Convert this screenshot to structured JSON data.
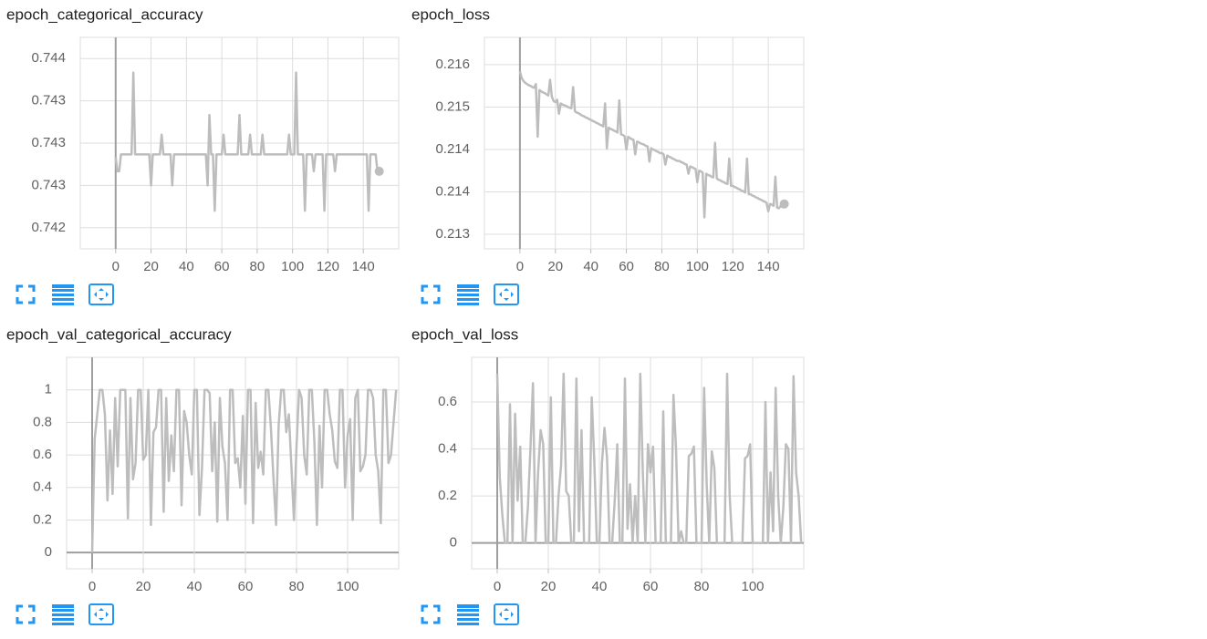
{
  "chart_data": [
    {
      "type": "line",
      "title": "epoch_categorical_accuracy",
      "color": "#bdbdbd",
      "grid": true,
      "end_marker": true,
      "xlim": [
        -20,
        160
      ],
      "xticks": [
        0,
        20,
        40,
        60,
        80,
        100,
        120,
        140
      ],
      "ylim": [
        0.74225,
        0.74375
      ],
      "yticks": [
        {
          "value": 0.7436,
          "label": "0.744"
        },
        {
          "value": 0.7433,
          "label": "0.743"
        },
        {
          "value": 0.743,
          "label": "0.743"
        },
        {
          "value": 0.7427,
          "label": "0.743"
        },
        {
          "value": 0.7424,
          "label": "0.742"
        }
      ],
      "x": [
        0,
        1,
        2,
        3,
        4,
        5,
        6,
        7,
        8,
        9,
        10,
        11,
        12,
        13,
        14,
        15,
        16,
        17,
        18,
        19,
        20,
        21,
        22,
        23,
        24,
        25,
        26,
        27,
        28,
        29,
        30,
        31,
        32,
        33,
        34,
        35,
        36,
        37,
        38,
        39,
        40,
        41,
        42,
        43,
        44,
        45,
        46,
        47,
        48,
        49,
        50,
        51,
        52,
        53,
        54,
        55,
        56,
        57,
        58,
        59,
        60,
        61,
        62,
        63,
        64,
        65,
        66,
        67,
        68,
        69,
        70,
        71,
        72,
        73,
        74,
        75,
        76,
        77,
        78,
        79,
        80,
        81,
        82,
        83,
        84,
        85,
        86,
        87,
        88,
        89,
        90,
        91,
        92,
        93,
        94,
        95,
        96,
        97,
        98,
        99,
        100,
        101,
        102,
        103,
        104,
        105,
        106,
        107,
        108,
        109,
        110,
        111,
        112,
        113,
        114,
        115,
        116,
        117,
        118,
        119,
        120,
        121,
        122,
        123,
        124,
        125,
        126,
        127,
        128,
        129,
        130,
        131,
        132,
        133,
        134,
        135,
        136,
        137,
        138,
        139,
        140,
        141,
        142,
        143,
        144,
        145,
        146,
        147,
        148,
        149
      ],
      "values": [
        0.7429,
        0.7428,
        0.7428,
        0.74292,
        0.74292,
        0.74292,
        0.74292,
        0.74292,
        0.74292,
        0.74292,
        0.7435,
        0.74292,
        0.74292,
        0.74292,
        0.74292,
        0.74292,
        0.74292,
        0.74292,
        0.74292,
        0.74292,
        0.7427,
        0.74292,
        0.74292,
        0.74292,
        0.74292,
        0.74292,
        0.74306,
        0.74292,
        0.74292,
        0.74292,
        0.74292,
        0.74292,
        0.7427,
        0.74292,
        0.74292,
        0.74292,
        0.74292,
        0.74292,
        0.74292,
        0.74292,
        0.74292,
        0.74292,
        0.74292,
        0.74292,
        0.74292,
        0.74292,
        0.74292,
        0.74292,
        0.74292,
        0.74292,
        0.74292,
        0.74292,
        0.7427,
        0.7432,
        0.74292,
        0.74292,
        0.74252,
        0.74292,
        0.74292,
        0.74292,
        0.74292,
        0.74306,
        0.74292,
        0.74292,
        0.74292,
        0.74292,
        0.74292,
        0.74292,
        0.74292,
        0.74292,
        0.7432,
        0.74292,
        0.74292,
        0.74292,
        0.74292,
        0.74292,
        0.74306,
        0.74292,
        0.74292,
        0.74292,
        0.74292,
        0.74292,
        0.74292,
        0.74306,
        0.74292,
        0.74292,
        0.74292,
        0.74292,
        0.74292,
        0.74292,
        0.74292,
        0.74292,
        0.74292,
        0.74292,
        0.74292,
        0.74292,
        0.74292,
        0.74292,
        0.74306,
        0.74292,
        0.74292,
        0.74292,
        0.7435,
        0.74292,
        0.74292,
        0.74292,
        0.74292,
        0.74252,
        0.74292,
        0.74292,
        0.74292,
        0.74292,
        0.7428,
        0.74292,
        0.74292,
        0.74292,
        0.74292,
        0.74292,
        0.74252,
        0.74292,
        0.74292,
        0.74292,
        0.74292,
        0.74292,
        0.7428,
        0.74292,
        0.74292,
        0.74292,
        0.74292,
        0.74292,
        0.74292,
        0.74292,
        0.74292,
        0.74292,
        0.74292,
        0.74292,
        0.74292,
        0.74292,
        0.74292,
        0.74292,
        0.74292,
        0.74292,
        0.74292,
        0.74252,
        0.74292,
        0.74292,
        0.74292,
        0.74292,
        0.7428,
        0.7428
      ]
    },
    {
      "type": "line",
      "title": "epoch_loss",
      "color": "#bdbdbd",
      "grid": true,
      "end_marker": true,
      "xlim": [
        -20,
        160
      ],
      "xticks": [
        0,
        20,
        40,
        60,
        80,
        100,
        120,
        140
      ],
      "ylim": [
        0.21276,
        0.21625
      ],
      "yticks": [
        {
          "value": 0.2158,
          "label": "0.216"
        },
        {
          "value": 0.2151,
          "label": "0.215"
        },
        {
          "value": 0.2144,
          "label": "0.214"
        },
        {
          "value": 0.2137,
          "label": "0.214"
        },
        {
          "value": 0.213,
          "label": "0.213"
        }
      ],
      "x": [
        0,
        1,
        2,
        3,
        4,
        5,
        6,
        7,
        8,
        9,
        10,
        11,
        12,
        13,
        14,
        15,
        16,
        17,
        18,
        19,
        20,
        21,
        22,
        23,
        24,
        25,
        26,
        27,
        28,
        29,
        30,
        31,
        32,
        33,
        34,
        35,
        36,
        37,
        38,
        39,
        40,
        41,
        42,
        43,
        44,
        45,
        46,
        47,
        48,
        49,
        50,
        51,
        52,
        53,
        54,
        55,
        56,
        57,
        58,
        59,
        60,
        61,
        62,
        63,
        64,
        65,
        66,
        67,
        68,
        69,
        70,
        71,
        72,
        73,
        74,
        75,
        76,
        77,
        78,
        79,
        80,
        81,
        82,
        83,
        84,
        85,
        86,
        87,
        88,
        89,
        90,
        91,
        92,
        93,
        94,
        95,
        96,
        97,
        98,
        99,
        100,
        101,
        102,
        103,
        104,
        105,
        106,
        107,
        108,
        109,
        110,
        111,
        112,
        113,
        114,
        115,
        116,
        117,
        118,
        119,
        120,
        121,
        122,
        123,
        124,
        125,
        126,
        127,
        128,
        129,
        130,
        131,
        132,
        133,
        134,
        135,
        136,
        137,
        138,
        139,
        140,
        141,
        142,
        143,
        144,
        145,
        146,
        147,
        148,
        149
      ],
      "values": [
        0.21569,
        0.21558,
        0.21553,
        0.2155,
        0.21548,
        0.21546,
        0.21545,
        0.21543,
        0.21542,
        0.21548,
        0.21461,
        0.21538,
        0.21536,
        0.21534,
        0.21533,
        0.21531,
        0.21529,
        0.21555,
        0.21527,
        0.2152,
        0.21518,
        0.21522,
        0.21499,
        0.21516,
        0.21514,
        0.21513,
        0.21512,
        0.2151,
        0.21509,
        0.21508,
        0.21543,
        0.21503,
        0.21501,
        0.215,
        0.21498,
        0.21496,
        0.21495,
        0.21493,
        0.21492,
        0.2149,
        0.21489,
        0.21487,
        0.21486,
        0.21484,
        0.21483,
        0.21481,
        0.2148,
        0.21478,
        0.21516,
        0.21442,
        0.21476,
        0.21474,
        0.21473,
        0.21471,
        0.2147,
        0.21468,
        0.21521,
        0.21465,
        0.21464,
        0.21462,
        0.2144,
        0.21461,
        0.21459,
        0.21457,
        0.21456,
        0.21432,
        0.21453,
        0.21452,
        0.2145,
        0.21449,
        0.21448,
        0.21446,
        0.21445,
        0.2142,
        0.21442,
        0.2144,
        0.21439,
        0.21437,
        0.21436,
        0.21434,
        0.21434,
        0.21432,
        0.21415,
        0.2143,
        0.21428,
        0.21427,
        0.21425,
        0.21424,
        0.21422,
        0.21421,
        0.21421,
        0.21419,
        0.21418,
        0.21416,
        0.21415,
        0.214,
        0.21412,
        0.21411,
        0.21409,
        0.21408,
        0.21386,
        0.21405,
        0.21404,
        0.21402,
        0.21328,
        0.214,
        0.21398,
        0.21397,
        0.21395,
        0.21394,
        0.21451,
        0.21392,
        0.2139,
        0.21389,
        0.21387,
        0.21386,
        0.21384,
        0.21383,
        0.21425,
        0.2138,
        0.2138,
        0.21378,
        0.21377,
        0.21375,
        0.21374,
        0.21372,
        0.21371,
        0.21369,
        0.21425,
        0.21366,
        0.21366,
        0.21364,
        0.21363,
        0.21361,
        0.2136,
        0.21358,
        0.21357,
        0.21355,
        0.21354,
        0.21352,
        0.21338,
        0.2135,
        0.21349,
        0.21347,
        0.21395,
        0.21344,
        0.21343,
        0.21347,
        0.21345,
        0.2135
      ]
    },
    {
      "type": "line",
      "title": "epoch_val_categorical_accuracy",
      "color": "#bdbdbd",
      "grid": true,
      "end_marker": false,
      "xlim": [
        -10,
        120
      ],
      "xticks": [
        0,
        20,
        40,
        60,
        80,
        100
      ],
      "ylim": [
        -0.1,
        1.2
      ],
      "yticks": [
        0,
        0.2,
        0.4,
        0.6,
        0.8,
        1
      ],
      "x": [
        0,
        1,
        2,
        3,
        4,
        5,
        6,
        7,
        8,
        9,
        10,
        11,
        12,
        13,
        14,
        15,
        16,
        17,
        18,
        19,
        20,
        21,
        22,
        23,
        24,
        25,
        26,
        27,
        28,
        29,
        30,
        31,
        32,
        33,
        34,
        35,
        36,
        37,
        38,
        39,
        40,
        41,
        42,
        43,
        44,
        45,
        46,
        47,
        48,
        49,
        50,
        51,
        52,
        53,
        54,
        55,
        56,
        57,
        58,
        59,
        60,
        61,
        62,
        63,
        64,
        65,
        66,
        67,
        68,
        69,
        70,
        71,
        72,
        73,
        74,
        75,
        76,
        77,
        78,
        79,
        80,
        81,
        82,
        83,
        84,
        85,
        86,
        87,
        88,
        89,
        90,
        91,
        92,
        93,
        94,
        95,
        96,
        97,
        98,
        99,
        100,
        101,
        102,
        103,
        104,
        105,
        106,
        107,
        108,
        109,
        110,
        111,
        112,
        113,
        114,
        115,
        116,
        117,
        118,
        119
      ],
      "values": [
        0,
        0.7,
        0.85,
        1,
        1,
        0.85,
        0.32,
        0.75,
        0.36,
        0.95,
        0.53,
        1,
        1,
        1,
        0.21,
        0.95,
        0.45,
        0.55,
        1,
        1,
        0.57,
        0.6,
        1,
        0.17,
        0.74,
        0.77,
        1,
        1,
        0.25,
        0.95,
        0.44,
        0.72,
        0.5,
        1,
        1,
        0.29,
        0.87,
        0.8,
        0.6,
        0.48,
        1,
        1,
        0.23,
        0.52,
        1,
        1,
        0.98,
        0.5,
        0.8,
        0.19,
        0.95,
        0.65,
        0.55,
        0.2,
        1,
        1,
        0.55,
        0.58,
        0.4,
        0.84,
        0.3,
        1,
        1,
        0.18,
        0.92,
        0.52,
        0.62,
        0.48,
        1,
        1,
        0.76,
        0.45,
        0.17,
        0.78,
        1,
        1,
        0.74,
        0.85,
        0.53,
        0.2,
        0.65,
        1,
        0.95,
        0.6,
        0.48,
        1,
        1,
        0.68,
        0.17,
        0.78,
        0.4,
        1,
        1,
        0.85,
        0.75,
        0.56,
        0.52,
        1,
        1,
        0.4,
        0.72,
        0.82,
        0.2,
        0.95,
        1,
        0.5,
        0.53,
        0.6,
        1,
        1,
        0.95,
        0.6,
        0.5,
        0.18,
        1,
        1,
        0.55,
        0.6,
        0.8,
        1
      ]
    },
    {
      "type": "line",
      "title": "epoch_val_loss",
      "color": "#bdbdbd",
      "grid": true,
      "end_marker": false,
      "xlim": [
        -10,
        120
      ],
      "xticks": [
        0,
        20,
        40,
        60,
        80,
        100
      ],
      "ylim": [
        -0.11,
        0.79
      ],
      "yticks": [
        0,
        0.2,
        0.4,
        0.6
      ],
      "x": [
        0,
        1,
        2,
        3,
        4,
        5,
        6,
        7,
        8,
        9,
        10,
        11,
        12,
        13,
        14,
        15,
        16,
        17,
        18,
        19,
        20,
        21,
        22,
        23,
        24,
        25,
        26,
        27,
        28,
        29,
        30,
        31,
        32,
        33,
        34,
        35,
        36,
        37,
        38,
        39,
        40,
        41,
        42,
        43,
        44,
        45,
        46,
        47,
        48,
        49,
        50,
        51,
        52,
        53,
        54,
        55,
        56,
        57,
        58,
        59,
        60,
        61,
        62,
        63,
        64,
        65,
        66,
        67,
        68,
        69,
        70,
        71,
        72,
        73,
        74,
        75,
        76,
        77,
        78,
        79,
        80,
        81,
        82,
        83,
        84,
        85,
        86,
        87,
        88,
        89,
        90,
        91,
        92,
        93,
        94,
        95,
        96,
        97,
        98,
        99,
        100,
        101,
        102,
        103,
        104,
        105,
        106,
        107,
        108,
        109,
        110,
        111,
        112,
        113,
        114,
        115,
        116,
        117,
        118,
        119
      ],
      "values": [
        0.72,
        0.28,
        0.12,
        0,
        0,
        0.59,
        0,
        0.55,
        0.18,
        0.41,
        0,
        0,
        0.15,
        0.4,
        0.68,
        0,
        0.3,
        0.48,
        0.42,
        0,
        0,
        0.62,
        0,
        0,
        0.2,
        0.33,
        0.72,
        0.22,
        0.2,
        0,
        0,
        0.7,
        0.05,
        0.48,
        0,
        0,
        0,
        0.62,
        0.35,
        0,
        0,
        0.34,
        0.49,
        0.36,
        0,
        0,
        0.18,
        0.42,
        0,
        0,
        0.7,
        0.06,
        0.25,
        0,
        0.2,
        0,
        0.72,
        0.3,
        0,
        0.42,
        0.3,
        0.41,
        0,
        0,
        0,
        0.56,
        0,
        0,
        0,
        0.63,
        0.4,
        0,
        0.05,
        0,
        0,
        0.37,
        0.38,
        0.41,
        0,
        0,
        0,
        0.66,
        0.25,
        0,
        0.39,
        0.32,
        0,
        0,
        0,
        0,
        0.72,
        0.2,
        0,
        0,
        0,
        0,
        0,
        0.36,
        0.37,
        0.42,
        0,
        0,
        0,
        0,
        0,
        0.6,
        0,
        0.3,
        0.05,
        0.66,
        0.2,
        0,
        0.15,
        0.42,
        0.4,
        0,
        0.71,
        0.3,
        0.2,
        0
      ]
    }
  ]
}
